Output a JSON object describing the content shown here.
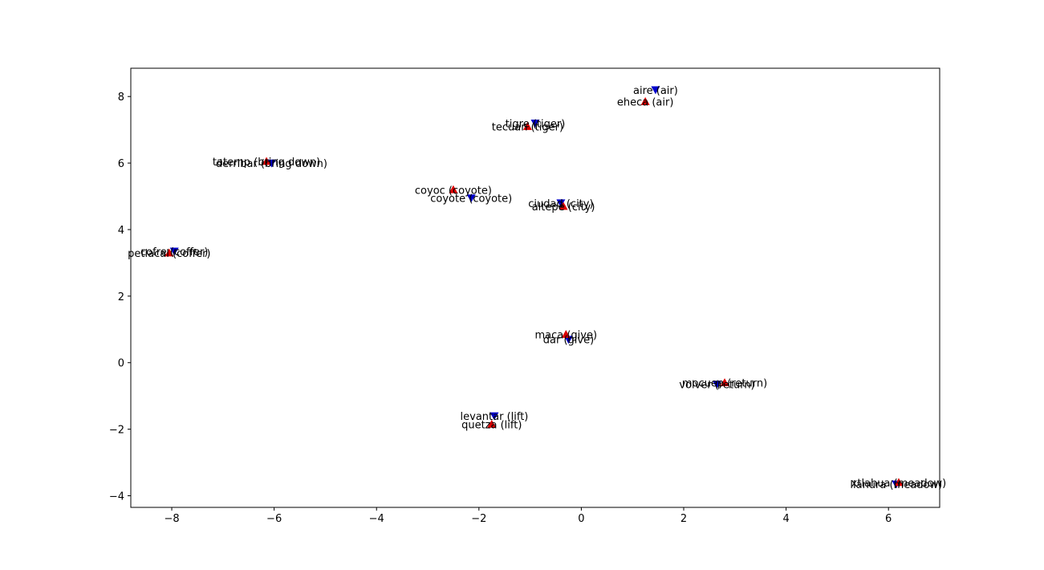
{
  "chart_data": {
    "type": "scatter",
    "title": "",
    "xlabel": "",
    "ylabel": "",
    "xlim": [
      -8.8,
      7.0
    ],
    "ylim": [
      -4.35,
      8.85
    ],
    "xticks": [
      -8,
      -6,
      -4,
      -2,
      0,
      2,
      4,
      6
    ],
    "yticks": [
      -4,
      -2,
      0,
      2,
      4,
      6,
      8
    ],
    "grid": false,
    "series": [
      {
        "marker": "triangle-down",
        "color": "#0000cc",
        "points": [
          {
            "x": 1.45,
            "y": 8.2,
            "label": "aire (air)"
          },
          {
            "x": -0.9,
            "y": 7.2,
            "label": "tigre (tiger)"
          },
          {
            "x": -6.05,
            "y": 6.0,
            "label": "derribar (bring down)"
          },
          {
            "x": -2.15,
            "y": 4.95,
            "label": "coyote (coyote)"
          },
          {
            "x": -0.4,
            "y": 4.8,
            "label": "ciudad (city)"
          },
          {
            "x": -7.95,
            "y": 3.35,
            "label": "cofre (coffer)"
          },
          {
            "x": -0.25,
            "y": 0.7,
            "label": "dar (give)"
          },
          {
            "x": 2.65,
            "y": -0.65,
            "label": "volver (return)"
          },
          {
            "x": -1.7,
            "y": -1.6,
            "label": "levantar (lift)"
          },
          {
            "x": 6.15,
            "y": -3.65,
            "label": "llanura (meadow)"
          }
        ]
      },
      {
        "marker": "triangle-up",
        "color": "#dd0000",
        "points": [
          {
            "x": 1.25,
            "y": 7.85,
            "label": "eheca (air)"
          },
          {
            "x": -1.05,
            "y": 7.1,
            "label": "tecuan (tiger)"
          },
          {
            "x": -6.15,
            "y": 6.05,
            "label": "tatemp (bring down)"
          },
          {
            "x": -2.5,
            "y": 5.2,
            "label": "coyoc (coyote)"
          },
          {
            "x": -0.35,
            "y": 4.7,
            "label": "altepe (city)"
          },
          {
            "x": -8.05,
            "y": 3.3,
            "label": "petlacal (coffer)"
          },
          {
            "x": -0.3,
            "y": 0.85,
            "label": "maca (give)"
          },
          {
            "x": 2.8,
            "y": -0.6,
            "label": "mocuep (return)"
          },
          {
            "x": -1.75,
            "y": -1.85,
            "label": "quetza (lift)"
          },
          {
            "x": 6.2,
            "y": -3.6,
            "label": "xtlahua (meadow)"
          }
        ]
      }
    ]
  }
}
